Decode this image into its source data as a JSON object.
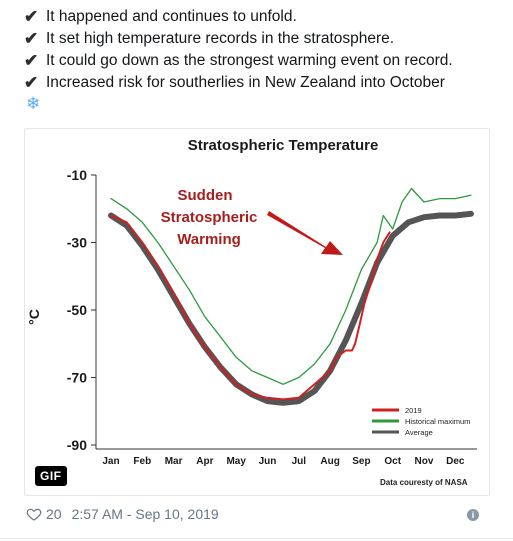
{
  "tweet": {
    "lines": [
      {
        "icon": "check-icon",
        "glyph": "✔",
        "text": "It happened and continues to unfold."
      },
      {
        "icon": "check-icon",
        "glyph": "✔",
        "text": "It set high temperature records in the stratosphere."
      },
      {
        "icon": "check-icon",
        "glyph": "✔",
        "text": "It could go down as the strongest warming event on record."
      },
      {
        "icon": "check-icon",
        "glyph": "✔",
        "text": "Increased risk for southerlies in New Zealand into October"
      }
    ],
    "snowflake": "❄"
  },
  "media": {
    "badge": "GIF"
  },
  "chart_data": {
    "type": "line",
    "title": "Stratospheric Temperature",
    "ylabel": "°C",
    "xlabel": "",
    "ylim": [
      -90,
      -10
    ],
    "yticks": [
      "-10",
      "-30",
      "-50",
      "-70",
      "-90"
    ],
    "categories": [
      "Jan",
      "Feb",
      "Mar",
      "Apr",
      "May",
      "Jun",
      "Jul",
      "Aug",
      "Sep",
      "Oct",
      "Nov",
      "Dec"
    ],
    "annotation": {
      "lines": [
        "Sudden",
        "Stratospheric",
        "Warming"
      ]
    },
    "credit": "Data couresty of NASA",
    "legend": {
      "placement": "bottom-right",
      "entries": [
        "2019",
        "Historical maximum",
        "Average"
      ]
    },
    "colors": {
      "2019": "#d21f1f",
      "max": "#2e9a3e",
      "avg": "#555555"
    },
    "series": [
      {
        "name": "Average",
        "key": "avg",
        "x": [
          0,
          0.5,
          1,
          1.5,
          2,
          2.5,
          3,
          3.5,
          4,
          4.5,
          5,
          5.5,
          6,
          6.5,
          7,
          7.5,
          8,
          8.5,
          9,
          9.5,
          10,
          10.5,
          11,
          11.5
        ],
        "y": [
          -22,
          -25,
          -31,
          -38,
          -46,
          -54,
          -61,
          -67,
          -72,
          -75,
          -77,
          -77.5,
          -77,
          -74,
          -68,
          -59,
          -48,
          -36,
          -28,
          -24,
          -22.5,
          -22,
          -22,
          -21.5
        ]
      },
      {
        "name": "Historical maximum",
        "key": "max",
        "x": [
          0,
          0.5,
          1,
          1.5,
          2,
          2.5,
          3,
          3.5,
          4,
          4.5,
          5,
          5.5,
          6,
          6.5,
          7,
          7.5,
          8,
          8.5,
          8.7,
          9,
          9.3,
          9.6,
          10,
          10.5,
          11,
          11.5
        ],
        "y": [
          -17,
          -20,
          -24,
          -30,
          -37,
          -44,
          -52,
          -58,
          -64,
          -68,
          -70,
          -72,
          -70,
          -66,
          -60,
          -50,
          -38,
          -30,
          -22,
          -26,
          -18,
          -14,
          -18,
          -17,
          -17,
          -16
        ]
      },
      {
        "name": "2019",
        "key": "r2019",
        "x": [
          0,
          0.5,
          1,
          1.5,
          2,
          2.5,
          3,
          3.5,
          4,
          4.5,
          5,
          5.5,
          6,
          6.5,
          7,
          7.2,
          7.5,
          7.7,
          7.8,
          7.9,
          8,
          8.1,
          8.3,
          8.5,
          8.7,
          8.9
        ],
        "y": [
          -22,
          -24,
          -30,
          -37,
          -45,
          -54,
          -61,
          -67,
          -72,
          -75,
          -76,
          -76.5,
          -76,
          -72,
          -68,
          -64,
          -62,
          -62,
          -60,
          -56,
          -52,
          -48,
          -42,
          -35,
          -30,
          -27
        ]
      }
    ]
  },
  "footer": {
    "likes": "20",
    "timestamp": "2:57 AM - Sep 10, 2019"
  }
}
